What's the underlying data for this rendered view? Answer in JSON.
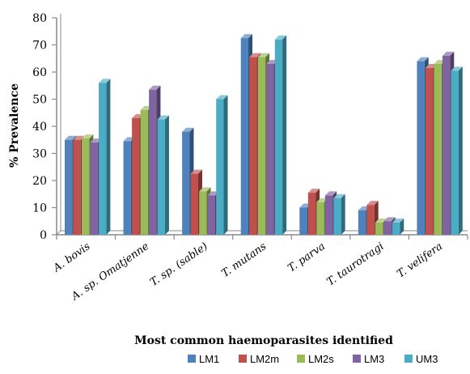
{
  "chart_data": {
    "type": "bar",
    "xlabel": "Most common haemoparasites identified",
    "ylabel": "% Prevalence",
    "ylim": [
      0,
      80
    ],
    "yticks": [
      0,
      10,
      20,
      30,
      40,
      50,
      60,
      70,
      80
    ],
    "grid": false,
    "legend_position": "bottom-right",
    "categories": [
      "A. bovis",
      "A. sp. Omatjenne",
      "T. sp. (sable)",
      "T. mutans",
      "T. parva",
      "T. taurotragi",
      "T. velifera"
    ],
    "series": [
      {
        "name": "LM1",
        "color": "#4F81BD",
        "values": [
          35,
          34.5,
          38,
          72.5,
          10,
          9,
          64
        ]
      },
      {
        "name": "LM2m",
        "color": "#C0504D",
        "values": [
          35,
          43,
          22.5,
          65.5,
          15.5,
          11,
          61.5
        ]
      },
      {
        "name": "LM2s",
        "color": "#9BBB59",
        "values": [
          35.5,
          46,
          16,
          65.5,
          12,
          4.5,
          63
        ]
      },
      {
        "name": "LM3",
        "color": "#8064A2",
        "values": [
          34,
          53.5,
          14.5,
          63,
          14.5,
          5,
          66
        ]
      },
      {
        "name": "UM3",
        "color": "#4BACC6",
        "values": [
          56,
          42.5,
          50,
          72,
          13.5,
          4.5,
          60.5
        ]
      }
    ]
  }
}
